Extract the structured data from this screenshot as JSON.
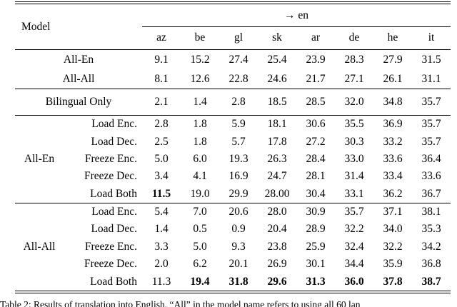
{
  "colors": {
    "text": "#000000",
    "background": "#ffffff"
  },
  "table": {
    "header": {
      "model_label": "Model",
      "direction_header": "→ en",
      "columns": [
        "az",
        "be",
        "gl",
        "sk",
        "ar",
        "de",
        "he",
        "it"
      ]
    },
    "sections": [
      {
        "rows": [
          {
            "type": "single",
            "label": "All-En",
            "values": [
              "9.1",
              "15.2",
              "27.4",
              "25.4",
              "23.9",
              "28.3",
              "27.9",
              "31.5"
            ],
            "bold": []
          },
          {
            "type": "single",
            "label": "All-All",
            "values": [
              "8.1",
              "12.6",
              "22.8",
              "24.6",
              "21.7",
              "27.1",
              "26.1",
              "31.1"
            ],
            "bold": []
          }
        ]
      },
      {
        "rows": [
          {
            "type": "single",
            "label": "Bilingual Only",
            "values": [
              "2.1",
              "1.4",
              "2.8",
              "18.5",
              "28.5",
              "32.0",
              "34.8",
              "35.7"
            ],
            "bold": []
          }
        ]
      },
      {
        "group": "All-En",
        "rows": [
          {
            "label": "Load Enc.",
            "values": [
              "2.8",
              "1.8",
              "5.9",
              "18.1",
              "30.6",
              "35.5",
              "36.9",
              "35.7"
            ],
            "bold": []
          },
          {
            "label": "Load Dec.",
            "values": [
              "2.5",
              "1.8",
              "5.7",
              "17.8",
              "27.2",
              "30.3",
              "33.2",
              "35.7"
            ],
            "bold": []
          },
          {
            "label": "Freeze Enc.",
            "values": [
              "5.0",
              "6.0",
              "19.3",
              "26.3",
              "28.4",
              "33.0",
              "33.6",
              "36.4"
            ],
            "bold": []
          },
          {
            "label": "Freeze Dec.",
            "values": [
              "3.4",
              "4.1",
              "16.9",
              "24.7",
              "28.1",
              "31.4",
              "33.4",
              "33.6"
            ],
            "bold": []
          },
          {
            "label": "Load Both",
            "values": [
              "11.5",
              "19.0",
              "29.9",
              "28.00",
              "30.4",
              "33.1",
              "36.2",
              "36.7"
            ],
            "bold": [
              0
            ]
          }
        ]
      },
      {
        "group": "All-All",
        "rows": [
          {
            "label": "Load Enc.",
            "values": [
              "5.4",
              "7.0",
              "20.6",
              "28.0",
              "30.9",
              "35.7",
              "37.1",
              "38.1"
            ],
            "bold": []
          },
          {
            "label": "Load Dec.",
            "values": [
              "1.4",
              "0.5",
              "0.9",
              "20.4",
              "28.9",
              "32.2",
              "34.0",
              "35.3"
            ],
            "bold": []
          },
          {
            "label": "Freeze Enc.",
            "values": [
              "3.3",
              "5.0",
              "9.3",
              "23.8",
              "25.9",
              "32.4",
              "32.2",
              "34.2"
            ],
            "bold": []
          },
          {
            "label": "Freeze Dec.",
            "values": [
              "2.0",
              "6.2",
              "20.1",
              "26.9",
              "30.1",
              "34.4",
              "35.9",
              "36.8"
            ],
            "bold": []
          },
          {
            "label": "Load Both",
            "values": [
              "11.3",
              "19.4",
              "31.8",
              "29.6",
              "31.3",
              "36.0",
              "37.8",
              "38.7"
            ],
            "bold": [
              1,
              2,
              3,
              4,
              5,
              6,
              7
            ]
          }
        ]
      }
    ],
    "caption": "Table 2: Results of translation into English. “All” in the model name refers to using all 60 lan"
  }
}
